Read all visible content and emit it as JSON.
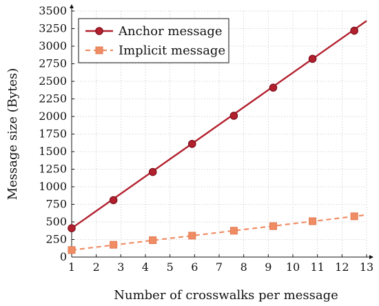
{
  "chart_data": {
    "type": "line",
    "title": "",
    "xlabel": "Number of crosswalks per message",
    "ylabel": "Message size (Bytes)",
    "xlim": [
      1,
      13
    ],
    "ylim": [
      0,
      3500
    ],
    "x_ticks": [
      1,
      2,
      3,
      4,
      5,
      6,
      7,
      8,
      9,
      10,
      11,
      12,
      13
    ],
    "y_ticks": [
      0,
      250,
      500,
      750,
      1000,
      1250,
      1500,
      1750,
      2000,
      2250,
      2500,
      2750,
      3000,
      3250,
      3500
    ],
    "y_tick_labels": [
      "0",
      "250",
      "500",
      "750",
      "1000",
      "1250",
      "1500",
      "1750",
      "2000",
      "2250",
      "2500",
      "2750",
      "3000",
      "3250",
      "3500"
    ],
    "grid": true,
    "legend_position": "top-left",
    "series": [
      {
        "name": "Anchor message",
        "color": "#b2202e",
        "marker": "circle",
        "line": "solid",
        "points": [
          [
            1,
            410
          ],
          [
            2.7,
            810
          ],
          [
            4.3,
            1210
          ],
          [
            5.9,
            1610
          ],
          [
            7.6,
            2010
          ],
          [
            9.2,
            2410
          ],
          [
            10.8,
            2820
          ],
          [
            12.5,
            3220
          ]
        ],
        "line_extent": [
          [
            1,
            410
          ],
          [
            13,
            3360
          ]
        ]
      },
      {
        "name": "Implicit message",
        "color": "#f08c64",
        "marker": "square",
        "line": "dashed",
        "points": [
          [
            1,
            100
          ],
          [
            2.7,
            175
          ],
          [
            4.3,
            240
          ],
          [
            5.9,
            305
          ],
          [
            7.6,
            375
          ],
          [
            9.2,
            440
          ],
          [
            10.8,
            510
          ],
          [
            12.5,
            580
          ]
        ],
        "line_extent": [
          [
            1,
            100
          ],
          [
            13,
            600
          ]
        ]
      }
    ]
  }
}
